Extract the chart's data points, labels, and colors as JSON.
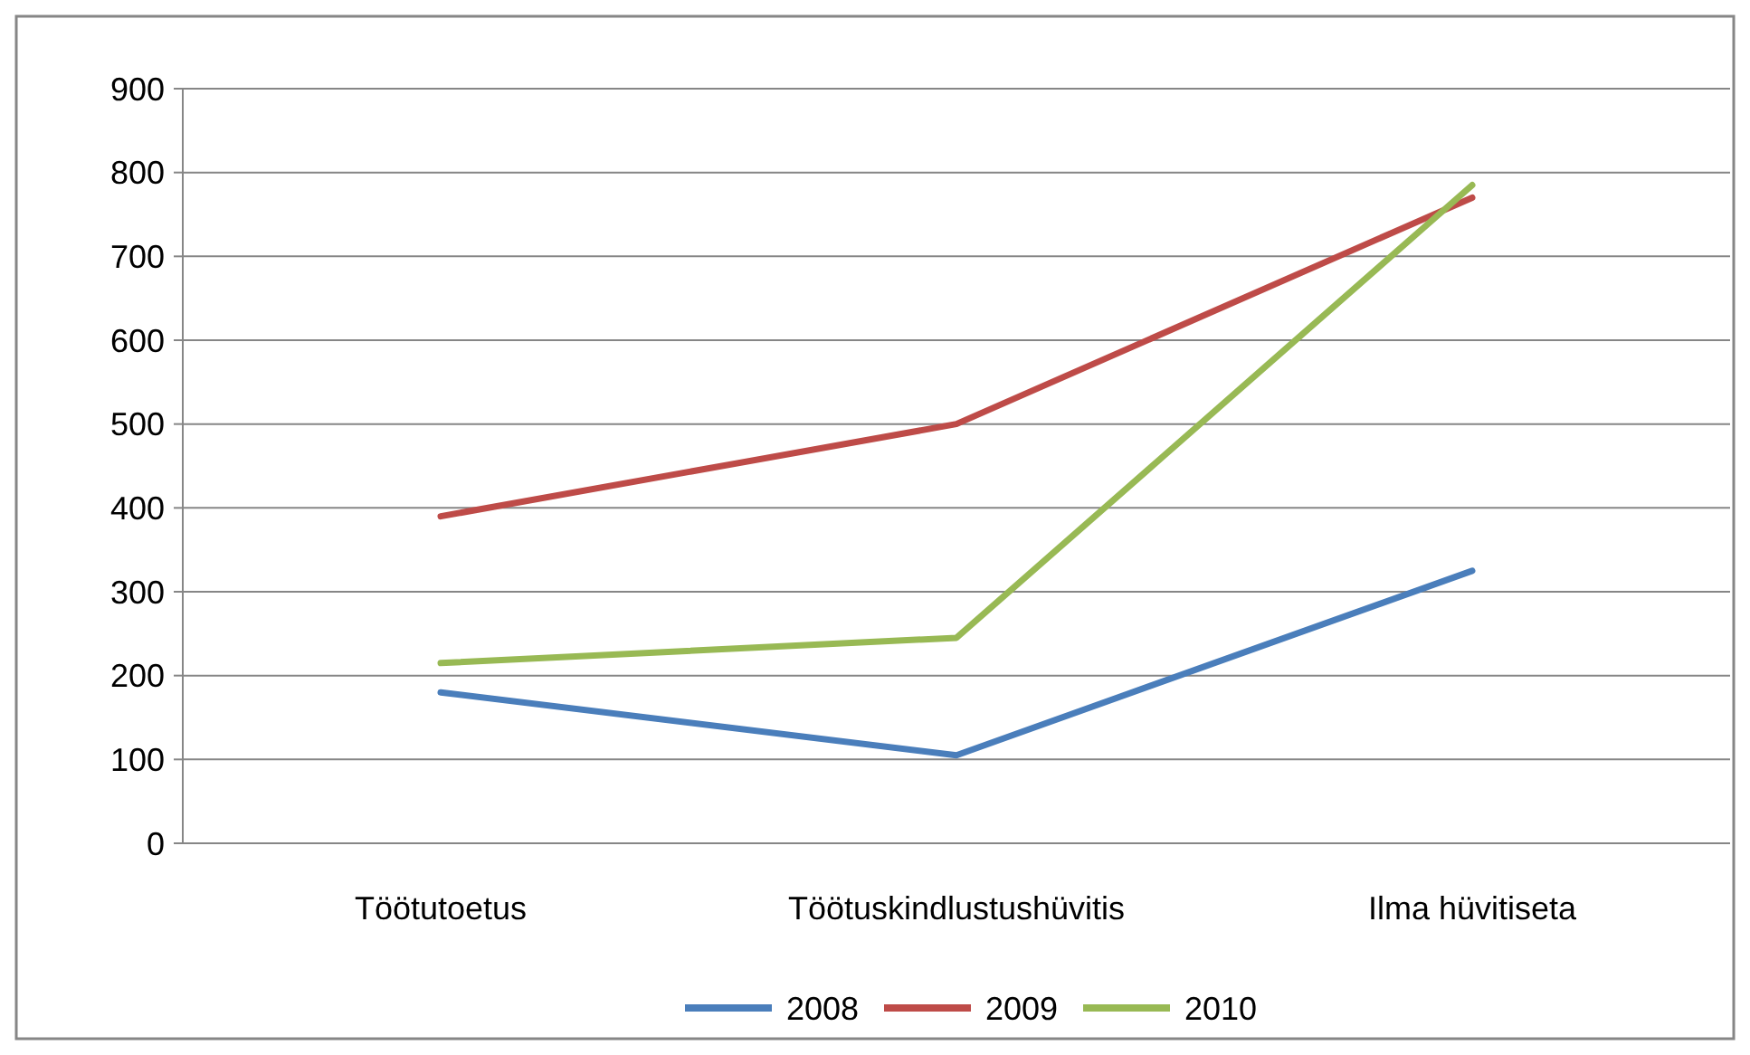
{
  "chart_data": {
    "type": "line",
    "categories": [
      "Töötutoetus",
      "Töötuskindlustushüvitis",
      "Ilma hüvitiseta"
    ],
    "series": [
      {
        "name": "2008",
        "color": "#4a7ebb",
        "values": [
          180,
          105,
          325
        ]
      },
      {
        "name": "2009",
        "color": "#be4b48",
        "values": [
          390,
          500,
          770
        ]
      },
      {
        "name": "2010",
        "color": "#98b954",
        "values": [
          215,
          245,
          785
        ]
      }
    ],
    "ylim": [
      0,
      900
    ],
    "yticks": [
      0,
      100,
      200,
      300,
      400,
      500,
      600,
      700,
      800,
      900
    ],
    "grid": "y",
    "legend": "bottom",
    "marker": "none",
    "line_style": "solid"
  }
}
